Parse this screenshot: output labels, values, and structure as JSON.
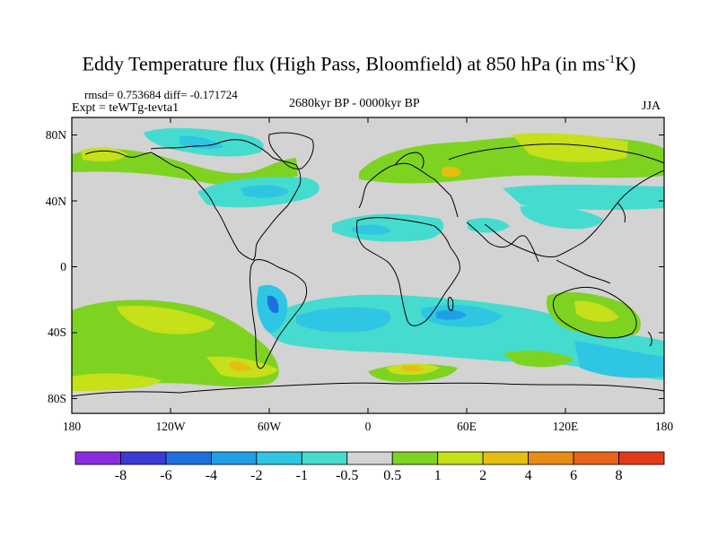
{
  "title": {
    "main": "Eddy Temperature flux (High Pass, Bloomfield) at 850 hPa (in ms",
    "exponent": "-1",
    "suffix": "K)"
  },
  "stats": {
    "rmsd_diff": "rmsd= 0.753684 diff= -0.171724",
    "experiment": "Expt = teWTg-tevta1",
    "period": "2680kyr BP - 0000kyr BP",
    "season": "JJA"
  },
  "axes": {
    "x_ticks": [
      "180",
      "120W",
      "60W",
      "0",
      "60E",
      "120E",
      "180"
    ],
    "y_ticks": [
      "80N",
      "40N",
      "0",
      "40S",
      "80S"
    ]
  },
  "colorbar": {
    "labels": [
      "-8",
      "-6",
      "-4",
      "-2",
      "-1",
      "-0.5",
      "0.5",
      "1",
      "2",
      "4",
      "6",
      "8"
    ],
    "colors": [
      "#8a2be2",
      "#3a3ad6",
      "#1e6fe0",
      "#1fa0e6",
      "#2ec6e3",
      "#45dccf",
      "#d3d3d3",
      "#7ed321",
      "#c6e01a",
      "#e6be12",
      "#e88c14",
      "#e8621a",
      "#e03a1a"
    ]
  },
  "palette": {
    "land_neutral": "#d3d3d3",
    "coast": "#000000"
  }
}
